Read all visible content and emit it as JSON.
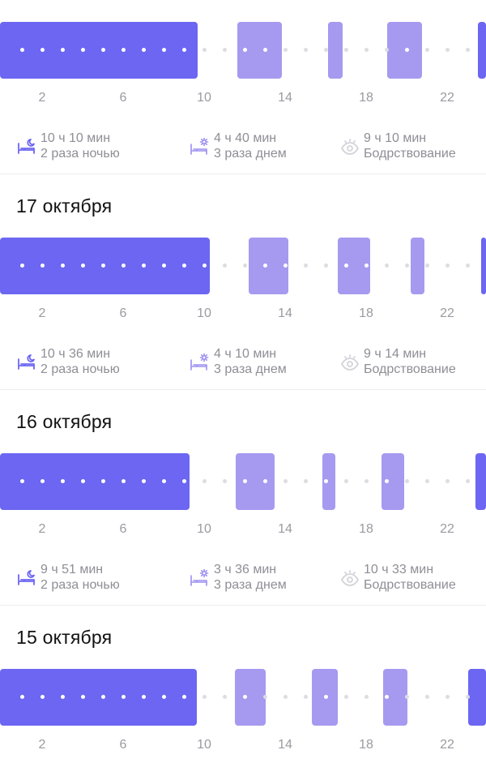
{
  "colors": {
    "night": "#6c66f2",
    "nap": "#a59af0",
    "muted_text": "#8e8e96",
    "dot_idle": "#dcdce2"
  },
  "hour_ticks": [
    "2",
    "6",
    "10",
    "14",
    "18",
    "22"
  ],
  "days": [
    {
      "title": "",
      "stats": {
        "night": {
          "icon": "bed-moon-icon",
          "duration": "10 ч 10 мин",
          "count": "2 раза ночью"
        },
        "day": {
          "icon": "bed-sun-icon",
          "duration": "4 ч 40 мин",
          "count": "3 раза днем"
        },
        "awake": {
          "icon": "eye-icon",
          "duration": "9 ч 10 мин",
          "count": "Бодрствование"
        }
      }
    },
    {
      "title": "17 октября",
      "stats": {
        "night": {
          "icon": "bed-moon-icon",
          "duration": "10 ч 36 мин",
          "count": "2 раза ночью"
        },
        "day": {
          "icon": "bed-sun-icon",
          "duration": "4 ч 10 мин",
          "count": "3 раза днем"
        },
        "awake": {
          "icon": "eye-icon",
          "duration": "9 ч 14 мин",
          "count": "Бодрствование"
        }
      }
    },
    {
      "title": "16 октября",
      "stats": {
        "night": {
          "icon": "bed-moon-icon",
          "duration": "9 ч 51 мин",
          "count": "2 раза ночью"
        },
        "day": {
          "icon": "bed-sun-icon",
          "duration": "3 ч 36 мин",
          "count": "3 раза днем"
        },
        "awake": {
          "icon": "eye-icon",
          "duration": "10 ч 33 мин",
          "count": "Бодрствование"
        }
      }
    },
    {
      "title": "15 октября"
    }
  ]
}
